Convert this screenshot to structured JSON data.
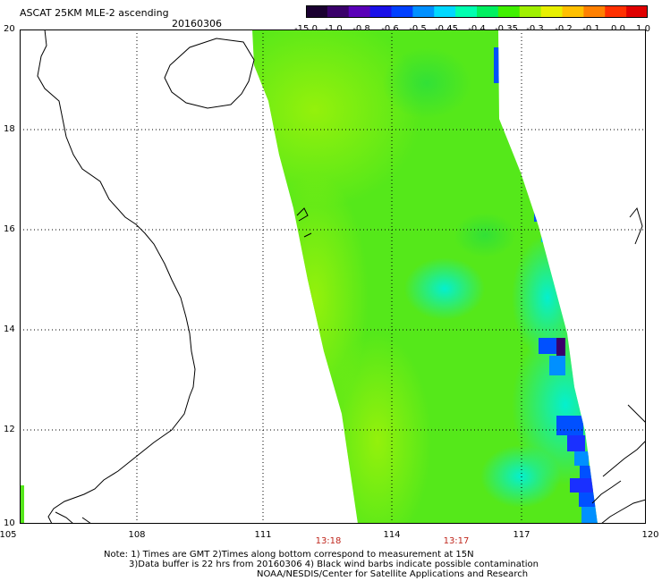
{
  "header": {
    "title": "ASCAT 25KM MLE-2 ascending",
    "date": "20160306"
  },
  "colorbar": {
    "labels": [
      "-15.0",
      "-1.0",
      "-0.8",
      "-0.6",
      "-0.5",
      "-0.45",
      "-0.4",
      "-0.35",
      "-0.3",
      "-0.2",
      "-0.1",
      "0.0",
      "1.0"
    ],
    "colors": [
      "#1a0030",
      "#3a006a",
      "#5a00b8",
      "#1a10e8",
      "#0040ff",
      "#0090ff",
      "#00d8ff",
      "#00ffb0",
      "#00f060",
      "#40f000",
      "#a0f000",
      "#e8f000",
      "#ffc000",
      "#ff8000",
      "#ff3000",
      "#e00000"
    ]
  },
  "map": {
    "lon_labels": [
      "105",
      "108",
      "111",
      "114",
      "117",
      "120"
    ],
    "lat_labels": [
      "20",
      "18",
      "16",
      "14",
      "12",
      "10"
    ],
    "pass_times": [
      "13:18",
      "13:17"
    ],
    "lon_range": [
      105,
      120
    ],
    "lat_range": [
      10,
      20
    ],
    "colors": {
      "swath_main": "#55e81a",
      "swath_light": "#9bf20a",
      "swath_cyan": "#00f0d8",
      "swath_blue": "#0050ff",
      "coast": "#000000",
      "grid": "#000000"
    }
  },
  "notes": {
    "line1": "Note: 1) Times are GMT 2)Times along bottom correspond to measurement at 15N",
    "line2": "3)Data buffer is 22 hrs from 20160306 4) Black wind barbs indicate possible contamination",
    "line3": "NOAA/NESDIS/Center for Satellite Applications and Research"
  }
}
